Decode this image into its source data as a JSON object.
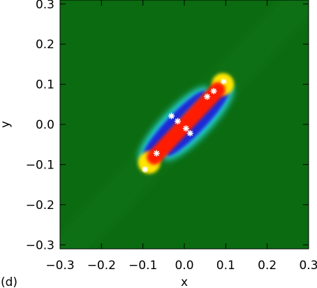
{
  "chart_data": {
    "type": "heatmap",
    "panel_label": "(d)",
    "title": "",
    "xlabel": "x",
    "ylabel": "y",
    "xlim": [
      -0.3,
      0.3
    ],
    "ylim": [
      -0.31,
      0.31
    ],
    "x_ticks": [
      -0.3,
      -0.2,
      -0.1,
      0.0,
      0.1,
      0.2,
      0.3
    ],
    "x_tick_labels": [
      "−0.3",
      "−0.2",
      "−0.1",
      "0.0",
      "0.1",
      "0.2",
      "0.3"
    ],
    "y_ticks": [
      -0.3,
      -0.2,
      -0.1,
      0.0,
      0.1,
      0.2,
      0.3
    ],
    "y_tick_labels": [
      "−0.3",
      "−0.2",
      "−0.1",
      "0.0",
      "0.1",
      "0.2",
      "0.3"
    ],
    "colors": {
      "background": "#0b6b10",
      "low": "#1a2bd6",
      "low_edge": "#25e5ef",
      "high": "#ff1a00",
      "high_edge": "#ffe600",
      "markers": "#ffffff"
    },
    "structure": {
      "start": [
        -0.085,
        -0.095
      ],
      "end": [
        0.093,
        0.1
      ]
    },
    "markers": [
      [
        -0.095,
        -0.112
      ],
      [
        -0.067,
        -0.072
      ],
      [
        -0.031,
        0.021
      ],
      [
        -0.016,
        0.008
      ],
      [
        0.004,
        -0.01
      ],
      [
        0.014,
        -0.022
      ],
      [
        0.055,
        0.069
      ],
      [
        0.071,
        0.083
      ],
      [
        0.095,
        0.107
      ]
    ]
  }
}
